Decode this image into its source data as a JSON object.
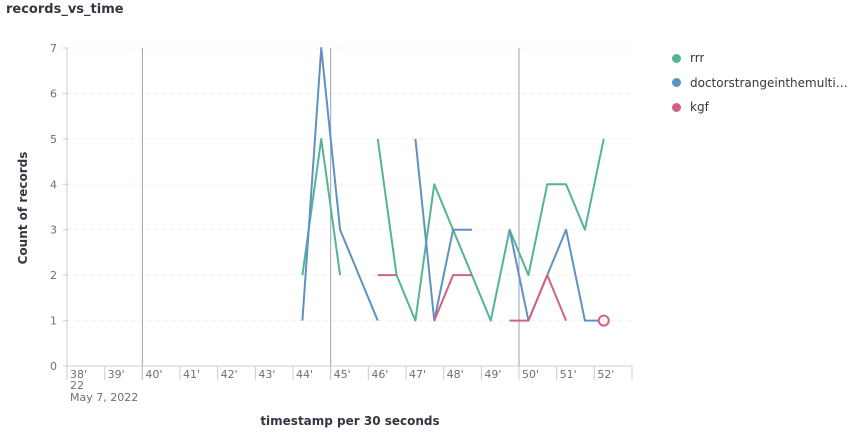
{
  "chart_data": {
    "type": "line",
    "title": "records_vs_time",
    "xlabel": "timestamp per 30 seconds",
    "ylabel": "Count of records",
    "ylim": [
      0,
      7
    ],
    "yticks": [
      0,
      1,
      2,
      3,
      4,
      5,
      6,
      7
    ],
    "x_start_label": "38'",
    "x_sub_labels": [
      "22",
      "May 7, 2022"
    ],
    "x_ticks": [
      "38'",
      "39'",
      "40'",
      "41'",
      "42'",
      "43'",
      "44'",
      "45'",
      "46'",
      "47'",
      "48'",
      "49'",
      "50'",
      "51'",
      "52'"
    ],
    "x_tick_unit": "minute (3:38 PM series)",
    "grid": true,
    "legend_position": "right",
    "series": [
      {
        "name": "rrr",
        "color": "#54B399",
        "values": [
          [
            44.25,
            2
          ],
          [
            44.75,
            5
          ],
          [
            45.25,
            2
          ],
          null,
          [
            46.25,
            5
          ],
          [
            46.75,
            2
          ],
          [
            47.25,
            1
          ],
          [
            47.75,
            4
          ],
          [
            48.25,
            3
          ],
          [
            48.75,
            2
          ],
          [
            49.25,
            1
          ],
          [
            49.75,
            3
          ],
          [
            50.25,
            2
          ],
          [
            50.75,
            4
          ],
          [
            51.25,
            4
          ],
          [
            51.75,
            3
          ],
          [
            52.25,
            5
          ]
        ]
      },
      {
        "name": "doctorstrangeinthemulti…",
        "color": "#6092C0",
        "values": [
          [
            44.25,
            1
          ],
          [
            44.75,
            7
          ],
          [
            45.25,
            3
          ],
          [
            45.75,
            2
          ],
          [
            46.25,
            1
          ],
          null,
          [
            47.25,
            5
          ],
          [
            47.75,
            1
          ],
          [
            48.25,
            3
          ],
          [
            48.75,
            3
          ],
          null,
          [
            49.75,
            3
          ],
          [
            50.25,
            1
          ],
          [
            51.25,
            3
          ],
          [
            51.75,
            1
          ],
          [
            52.25,
            1
          ]
        ]
      },
      {
        "name": "kgf",
        "color": "#D36086",
        "values": [
          [
            46.25,
            2
          ],
          [
            46.75,
            2
          ],
          null,
          [
            47.75,
            1
          ],
          [
            48.25,
            2
          ],
          [
            48.75,
            2
          ],
          null,
          [
            49.75,
            1
          ],
          [
            50.25,
            1
          ],
          [
            50.75,
            2
          ],
          [
            51.25,
            1
          ],
          null,
          [
            52.25,
            1
          ]
        ]
      }
    ]
  },
  "legend": {
    "items": [
      {
        "label": "rrr",
        "color": "#54B399"
      },
      {
        "label": "doctorstrangeinthemulti…",
        "color": "#6092C0"
      },
      {
        "label": "kgf",
        "color": "#D36086"
      }
    ]
  }
}
